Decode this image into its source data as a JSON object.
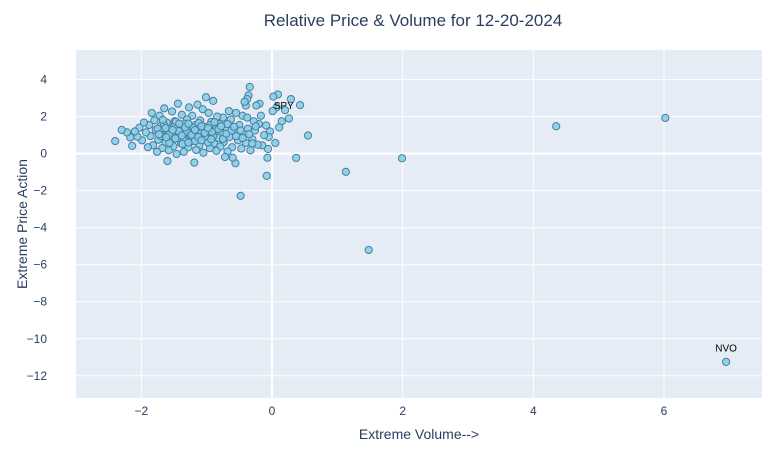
{
  "chart_data": {
    "type": "scatter",
    "title": "Relative Price & Volume for 12-20-2024",
    "xlabel": "Extreme Volume-->",
    "ylabel": "Extreme Price Action",
    "xlim": [
      -3.0,
      7.5
    ],
    "ylim": [
      -13.2,
      5.6
    ],
    "x_ticks": [
      -2,
      0,
      2,
      4,
      6
    ],
    "y_ticks": [
      4,
      2,
      0,
      -2,
      -4,
      -6,
      -8,
      -10,
      -12
    ],
    "x_tick_labels": [
      "−2",
      "0",
      "2",
      "4",
      "6"
    ],
    "y_tick_labels": [
      "4",
      "2",
      "0",
      "−2",
      "−4",
      "−6",
      "−8",
      "−10",
      "−12"
    ],
    "grid": true,
    "legend": "none",
    "colors": {
      "plot_bg": "#e5ecf6",
      "grid": "#ffffff",
      "marker_fill": "#87ceeb",
      "marker_stroke": "#4a7f9a",
      "title": "#2a3f5f",
      "axis_text": "#2a3f5f",
      "annotation": "#000000"
    },
    "annotations": [
      {
        "text": "SPY",
        "x": 0.18,
        "y": 2.4
      },
      {
        "text": "NVO",
        "x": 6.95,
        "y": -10.7
      }
    ],
    "points": [
      [
        6.95,
        -11.25
      ],
      [
        6.02,
        1.93
      ],
      [
        4.35,
        1.48
      ],
      [
        1.99,
        -0.25
      ],
      [
        1.48,
        -5.2
      ],
      [
        1.13,
        -0.98
      ],
      [
        0.55,
        0.98
      ],
      [
        0.43,
        2.62
      ],
      [
        0.37,
        -0.23
      ],
      [
        0.29,
        2.95
      ],
      [
        0.26,
        1.9
      ],
      [
        0.2,
        2.35
      ],
      [
        0.15,
        1.75
      ],
      [
        0.11,
        1.42
      ],
      [
        0.09,
        3.2
      ],
      [
        0.07,
        2.5
      ],
      [
        0.05,
        0.58
      ],
      [
        0.02,
        3.08
      ],
      [
        0.01,
        2.3
      ],
      [
        -0.03,
        1.2
      ],
      [
        -0.05,
        0.9
      ],
      [
        -0.06,
        0.25
      ],
      [
        -0.07,
        -0.22
      ],
      [
        -0.08,
        -1.2
      ],
      [
        -0.09,
        1.52
      ],
      [
        -0.12,
        1.0
      ],
      [
        -0.15,
        0.45
      ],
      [
        -0.17,
        2.05
      ],
      [
        -0.19,
        2.7
      ],
      [
        -0.2,
        1.6
      ],
      [
        -0.22,
        0.48
      ],
      [
        -0.24,
        2.6
      ],
      [
        -0.26,
        1.25
      ],
      [
        -0.3,
        0.78
      ],
      [
        -0.33,
        0.18
      ],
      [
        -0.34,
        3.6
      ],
      [
        -0.36,
        3.15
      ],
      [
        -0.37,
        1.35
      ],
      [
        -0.38,
        2.95
      ],
      [
        -0.4,
        2.6
      ],
      [
        -0.4,
        0.58
      ],
      [
        -0.42,
        2.8
      ],
      [
        -0.43,
        1.05
      ],
      [
        -0.45,
        2.05
      ],
      [
        -0.47,
        0.28
      ],
      [
        -0.48,
        -2.28
      ],
      [
        -0.5,
        1.55
      ],
      [
        -0.52,
        0.72
      ],
      [
        -0.55,
        2.2
      ],
      [
        -0.56,
        -0.52
      ],
      [
        -0.58,
        1.2
      ],
      [
        -0.6,
        -0.22
      ],
      [
        -0.61,
        0.35
      ],
      [
        -0.63,
        1.85
      ],
      [
        -0.65,
        0.9
      ],
      [
        -0.66,
        2.3
      ],
      [
        -0.68,
        0.12
      ],
      [
        -0.7,
        1.42
      ],
      [
        -0.72,
        -0.18
      ],
      [
        -0.74,
        0.62
      ],
      [
        -0.75,
        1.95
      ],
      [
        -0.77,
        1.1
      ],
      [
        -0.79,
        0.38
      ],
      [
        -0.8,
        1.6
      ],
      [
        -0.82,
        0.85
      ],
      [
        -0.84,
        2.0
      ],
      [
        -0.85,
        0.15
      ],
      [
        -0.87,
        1.3
      ],
      [
        -0.89,
        0.55
      ],
      [
        -0.9,
        2.85
      ],
      [
        -0.92,
        1.0
      ],
      [
        -0.93,
        1.72
      ],
      [
        -0.95,
        0.3
      ],
      [
        -0.97,
        2.2
      ],
      [
        -0.98,
        1.15
      ],
      [
        -1.0,
        0.7
      ],
      [
        -1.01,
        3.05
      ],
      [
        -1.03,
        1.45
      ],
      [
        -1.05,
        0.05
      ],
      [
        -1.06,
        2.4
      ],
      [
        -1.08,
        0.92
      ],
      [
        -1.1,
        1.8
      ],
      [
        -1.11,
        0.45
      ],
      [
        -1.13,
        1.25
      ],
      [
        -1.14,
        2.65
      ],
      [
        -1.16,
        0.2
      ],
      [
        -1.17,
        1.55
      ],
      [
        -1.19,
        -0.48
      ],
      [
        -1.2,
        1.05
      ],
      [
        -1.22,
        2.05
      ],
      [
        -1.23,
        0.68
      ],
      [
        -1.25,
        1.38
      ],
      [
        -1.27,
        2.5
      ],
      [
        -1.28,
        0.35
      ],
      [
        -1.3,
        1.85
      ],
      [
        -1.31,
        0.98
      ],
      [
        -1.33,
        1.62
      ],
      [
        -1.35,
        0.1
      ],
      [
        -1.36,
        1.2
      ],
      [
        -1.38,
        2.1
      ],
      [
        -1.39,
        0.55
      ],
      [
        -1.41,
        1.45
      ],
      [
        -1.43,
        0.82
      ],
      [
        -1.44,
        2.7
      ],
      [
        -1.46,
        -0.02
      ],
      [
        -1.48,
        1.1
      ],
      [
        -1.49,
        1.75
      ],
      [
        -1.51,
        0.4
      ],
      [
        -1.53,
        2.28
      ],
      [
        -1.54,
        0.95
      ],
      [
        -1.56,
        1.35
      ],
      [
        -1.58,
        0.18
      ],
      [
        -1.6,
        -0.4
      ],
      [
        -1.61,
        1.68
      ],
      [
        -1.63,
        0.62
      ],
      [
        -1.65,
        2.45
      ],
      [
        -1.66,
        1.02
      ],
      [
        -1.68,
        0.3
      ],
      [
        -1.7,
        1.5
      ],
      [
        -1.72,
        2.05
      ],
      [
        -1.74,
        0.75
      ],
      [
        -1.76,
        0.1
      ],
      [
        -1.78,
        1.28
      ],
      [
        -1.8,
        1.8
      ],
      [
        -1.82,
        0.45
      ],
      [
        -1.84,
        2.2
      ],
      [
        -1.86,
        0.95
      ],
      [
        -1.88,
        1.55
      ],
      [
        -1.9,
        0.35
      ],
      [
        -1.93,
        1.15
      ],
      [
        -1.96,
        1.68
      ],
      [
        -1.99,
        0.72
      ],
      [
        -2.03,
        1.4
      ],
      [
        -2.06,
        0.92
      ],
      [
        -2.1,
        1.2
      ],
      [
        -2.14,
        0.42
      ],
      [
        -2.17,
        0.88
      ],
      [
        -2.22,
        1.15
      ],
      [
        -2.3,
        1.28
      ],
      [
        -2.4,
        0.68
      ],
      [
        -1.2,
        1.4
      ],
      [
        -1.15,
        1.2
      ],
      [
        -1.05,
        1.3
      ],
      [
        -0.95,
        1.55
      ],
      [
        -1.3,
        1.15
      ],
      [
        -1.4,
        1.3
      ],
      [
        -1.35,
        0.75
      ],
      [
        -1.25,
        0.95
      ],
      [
        -1.1,
        1.1
      ],
      [
        -1.0,
        1.25
      ],
      [
        -0.9,
        0.95
      ],
      [
        -0.85,
        1.4
      ],
      [
        -1.45,
        1.05
      ],
      [
        -1.5,
        1.45
      ],
      [
        -1.55,
        0.85
      ],
      [
        -1.6,
        1.2
      ],
      [
        -1.7,
        0.95
      ],
      [
        -1.75,
        1.35
      ],
      [
        -1.65,
        1.55
      ],
      [
        -1.22,
        0.82
      ],
      [
        -1.12,
        1.65
      ],
      [
        -1.02,
        0.88
      ],
      [
        -0.92,
        1.18
      ],
      [
        -0.82,
        1.32
      ],
      [
        -0.75,
        0.8
      ],
      [
        -0.7,
        1.08
      ],
      [
        -0.62,
        1.25
      ],
      [
        -0.55,
        0.95
      ],
      [
        -1.33,
        1.42
      ],
      [
        -1.43,
        1.22
      ],
      [
        -1.53,
        1.12
      ],
      [
        -1.63,
        1.38
      ],
      [
        -1.73,
        1.05
      ],
      [
        -1.28,
        1.62
      ],
      [
        -1.18,
        0.68
      ],
      [
        -1.08,
        1.48
      ],
      [
        -0.98,
        0.6
      ],
      [
        -0.88,
        1.7
      ],
      [
        -1.37,
        0.52
      ],
      [
        -1.47,
        1.72
      ],
      [
        -1.57,
        0.58
      ],
      [
        -1.67,
        1.82
      ],
      [
        -1.23,
        1.02
      ],
      [
        -1.13,
        0.9
      ],
      [
        -1.03,
        1.12
      ],
      [
        -0.93,
        0.78
      ],
      [
        -1.38,
        0.98
      ],
      [
        -1.48,
        0.82
      ],
      [
        -1.58,
        1.02
      ],
      [
        -1.18,
        1.28
      ],
      [
        -1.08,
        0.72
      ],
      [
        -0.98,
        1.38
      ],
      [
        -1.28,
        0.6
      ],
      [
        -1.42,
        1.62
      ],
      [
        -1.62,
        0.88
      ],
      [
        -1.52,
        1.28
      ],
      [
        -0.68,
        1.6
      ],
      [
        -0.78,
        1.48
      ],
      [
        -0.58,
        1.45
      ],
      [
        -0.48,
        1.25
      ],
      [
        -0.45,
        0.85
      ],
      [
        -0.35,
        1.05
      ],
      [
        -0.28,
        1.75
      ],
      [
        -0.38,
        1.95
      ],
      [
        -0.3,
        0.55
      ],
      [
        -0.25,
        1.48
      ]
    ]
  }
}
